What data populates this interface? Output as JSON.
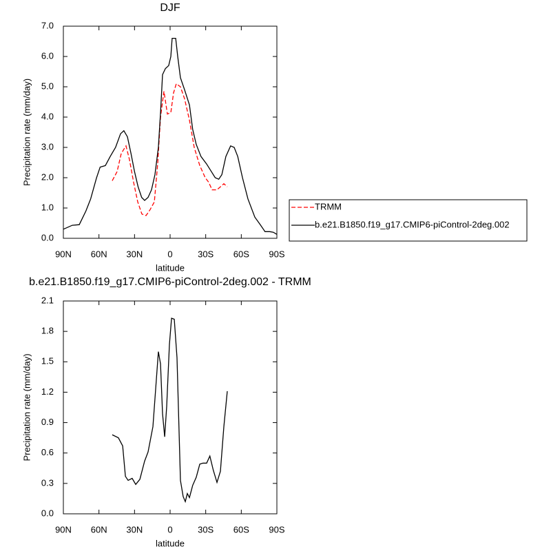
{
  "chart_data": [
    {
      "type": "line",
      "title": "DJF",
      "xlabel": "latitude",
      "ylabel": "Precipitation rate (mm/day)",
      "xlim": [
        90,
        -90
      ],
      "ylim": [
        0,
        7
      ],
      "xticks": [
        {
          "value": 90,
          "label": "90N"
        },
        {
          "value": 60,
          "label": "60N"
        },
        {
          "value": 30,
          "label": "30N"
        },
        0,
        {
          "value": -30,
          "label": "30S"
        },
        {
          "value": -60,
          "label": "60S"
        },
        {
          "value": -90,
          "label": "90S"
        }
      ],
      "yticks": [
        {
          "value": 0,
          "label": "0.0"
        },
        {
          "value": 1,
          "label": "1.0"
        },
        {
          "value": 2,
          "label": "2.0"
        },
        {
          "value": 3,
          "label": "3.0"
        },
        {
          "value": 4,
          "label": "4.0"
        },
        {
          "value": 5,
          "label": "5.0"
        },
        {
          "value": 6,
          "label": "6.0"
        },
        {
          "value": 7,
          "label": "7.0"
        }
      ],
      "series": [
        {
          "name": "TRMM",
          "color": "#ff0000",
          "dashed": true,
          "x": [
            48.8,
            44.7,
            41.2,
            37.2,
            34.3,
            30.8,
            27.3,
            23.8,
            20.3,
            16.8,
            13.3,
            10.4,
            8.1,
            5.2,
            2.3,
            -0.6,
            -2.9,
            -5.2,
            -8.7,
            -12.2,
            -16.3,
            -20.3,
            -25,
            -29.6,
            -32.5,
            -35.4,
            -39.5,
            -42.4,
            -45.3,
            -48.2
          ],
          "values": [
            1.9,
            2.2,
            2.8,
            3.05,
            2.6,
            1.85,
            1.2,
            0.8,
            0.75,
            0.95,
            1.2,
            2.5,
            4.0,
            4.85,
            4.1,
            4.15,
            4.8,
            5.1,
            5.0,
            4.6,
            3.9,
            3.0,
            2.4,
            2.0,
            1.85,
            1.6,
            1.6,
            1.7,
            1.8,
            1.7
          ]
        },
        {
          "name": "b.e21.B1850.f19_g17.CMIP6-piControl-2deg.002",
          "color": "#000000",
          "dashed": false,
          "x": [
            90,
            82.5,
            76.6,
            71,
            67,
            62,
            59,
            54.6,
            50.5,
            46,
            41.8,
            39,
            36,
            33,
            30,
            27,
            24,
            21.5,
            18.6,
            15.7,
            12.8,
            9.9,
            8,
            6.4,
            4,
            1.2,
            -0.6,
            -1.7,
            -4.7,
            -6.4,
            -8.7,
            -12.2,
            -16.3,
            -19,
            -22,
            -26,
            -30.8,
            -34.8,
            -38,
            -41,
            -43.6,
            -47,
            -51,
            -54,
            -57,
            -61,
            -65.6,
            -71.4,
            -76,
            -80,
            -84,
            -87,
            -90
          ],
          "values": [
            0.3,
            0.43,
            0.45,
            0.9,
            1.3,
            2.0,
            2.35,
            2.4,
            2.7,
            3.0,
            3.45,
            3.55,
            3.35,
            2.8,
            2.2,
            1.7,
            1.35,
            1.25,
            1.35,
            1.6,
            2.1,
            3.0,
            4.2,
            5.4,
            5.6,
            5.7,
            6.0,
            6.6,
            6.6,
            6.0,
            5.3,
            4.9,
            4.4,
            3.6,
            3.1,
            2.7,
            2.45,
            2.2,
            2.0,
            1.95,
            2.1,
            2.7,
            3.05,
            3.0,
            2.7,
            2.0,
            1.3,
            0.7,
            0.45,
            0.22,
            0.22,
            0.2,
            0.13
          ]
        }
      ],
      "legend": "right"
    },
    {
      "type": "line",
      "title": "b.e21.B1850.f19_g17.CMIP6-piControl-2deg.002 - TRMM",
      "xlabel": "latitude",
      "ylabel": "Precipitation rate (mm/day)",
      "xlim": [
        90,
        -90
      ],
      "ylim": [
        0,
        2.1
      ],
      "xticks": [
        {
          "value": 90,
          "label": "90N"
        },
        {
          "value": 60,
          "label": "60N"
        },
        {
          "value": 30,
          "label": "30N"
        },
        0,
        {
          "value": -30,
          "label": "30S"
        },
        {
          "value": -60,
          "label": "60S"
        },
        {
          "value": -90,
          "label": "90S"
        }
      ],
      "yticks": [
        {
          "value": 0,
          "label": "0.0"
        },
        0.3,
        0.6,
        0.9,
        1.2,
        1.5,
        1.8,
        2.1
      ],
      "color": "#000000",
      "x": [
        48.8,
        43.6,
        40,
        37.7,
        35.4,
        32,
        29,
        25.5,
        21.5,
        18.6,
        14.5,
        12.2,
        9.9,
        8.1,
        6.4,
        4.6,
        2.9,
        0.6,
        -1.2,
        -3.5,
        -5.8,
        -8.7,
        -11,
        -12.8,
        -14.5,
        -16.3,
        -19,
        -22,
        -25,
        -27.7,
        -30.8,
        -33.5,
        -36.4,
        -39.5,
        -42.4,
        -45.3,
        -48.2
      ],
      "values": [
        0.78,
        0.75,
        0.67,
        0.37,
        0.33,
        0.35,
        0.29,
        0.34,
        0.52,
        0.61,
        0.86,
        1.23,
        1.6,
        1.48,
        0.99,
        0.76,
        1.06,
        1.67,
        1.93,
        1.92,
        1.54,
        0.33,
        0.17,
        0.12,
        0.2,
        0.16,
        0.28,
        0.36,
        0.49,
        0.5,
        0.5,
        0.57,
        0.43,
        0.31,
        0.42,
        0.86,
        1.21
      ]
    }
  ]
}
